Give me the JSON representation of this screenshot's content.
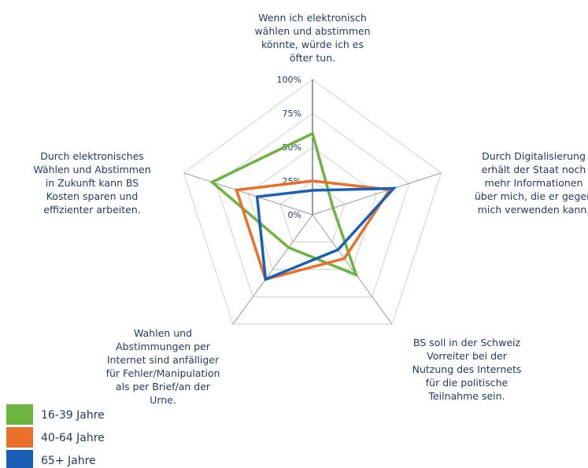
{
  "chart_data": {
    "type": "radar",
    "axes": [
      "Wenn ich elektronisch wählen und abstimmen könnte, würde ich es öfter tun.",
      "Durch Digitalisierung erhält der Staat noch mehr Informationen über mich, die er gegen mich verwenden kann.",
      "BS soll in der Schweiz Vorreiter bei der Nutzung des Internets für die politische Teilnahme sein.",
      "Wahlen und Abstimmungen per Internet sind anfälliger für Fehler/Manipulation als per Brief/an der Urne.",
      "Durch elektronisches Wählen und Abstimmen in Zukunft kann BS Kosten sparen und effizienter arbeiten."
    ],
    "axis_label_lines": [
      [
        "Wenn ich elektronisch",
        "wählen und abstimmen",
        "könnte, würde ich es",
        "öfter tun."
      ],
      [
        "Durch Digitalisierung",
        "erhält der Staat noch",
        "mehr Informationen",
        "über mich, die er gegen",
        "mich verwenden kann."
      ],
      [
        "BS soll in der Schweiz",
        "Vorreiter bei der",
        "Nutzung des Internets",
        "für die politische",
        "Teilnahme sein."
      ],
      [
        "Wahlen und",
        "Abstimmungen per",
        "Internet sind anfälliger",
        "für Fehler/Manipulation",
        "als per Brief/an der",
        "Urne."
      ],
      [
        "Durch elektronisches",
        "Wählen und Abstimmen",
        "in Zukunft kann BS",
        "Kosten sparen und",
        "effizienter arbeiten."
      ]
    ],
    "rlim": [
      0,
      100
    ],
    "ticks": [
      "0%",
      "25%",
      "50%",
      "75%",
      "100%"
    ],
    "tick_values": [
      0,
      25,
      50,
      75,
      100
    ],
    "grid": true,
    "legend_position": "bottom-left",
    "series": [
      {
        "name": "16-39 Jahre",
        "color": "#6db33f",
        "values": [
          60,
          16,
          55,
          30,
          78
        ]
      },
      {
        "name": "40-64 Jahre",
        "color": "#e8702a",
        "values": [
          25,
          60,
          40,
          59,
          59
        ]
      },
      {
        "name": "65+ Jahre",
        "color": "#1a5fb4",
        "values": [
          18,
          63,
          32,
          59,
          43
        ]
      }
    ]
  }
}
